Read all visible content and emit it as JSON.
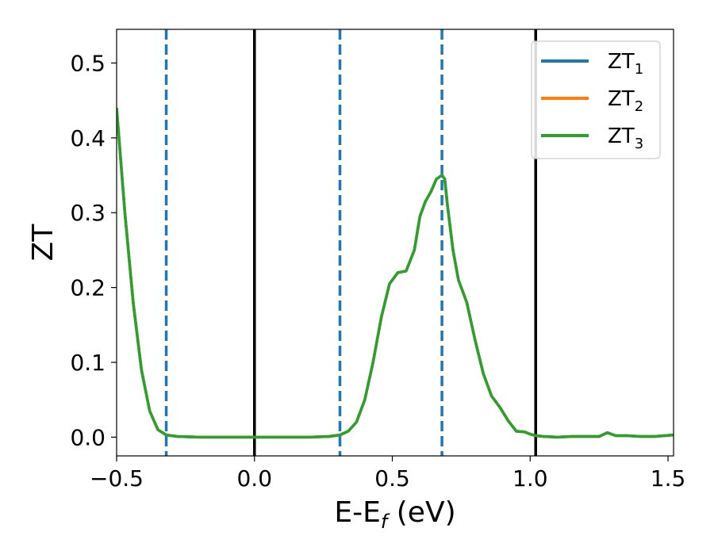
{
  "chart_data": {
    "type": "line",
    "title": "",
    "xlabel": "E-E",
    "xlabel_sub": "f",
    "xlabel_suffix": " (eV)",
    "ylabel": "ZT",
    "xlim": [
      -0.5,
      1.52
    ],
    "ylim": [
      -0.025,
      0.545
    ],
    "xticks": [
      -0.5,
      0.0,
      0.5,
      1.0,
      1.5
    ],
    "xtick_labels": [
      "−0.5",
      "0.0",
      "0.5",
      "1.0",
      "1.5"
    ],
    "yticks": [
      0.0,
      0.1,
      0.2,
      0.3,
      0.4,
      0.5
    ],
    "ytick_labels": [
      "0.0",
      "0.1",
      "0.2",
      "0.3",
      "0.4",
      "0.5"
    ],
    "grid": false,
    "legend_position": "top-right",
    "vlines_solid": [
      0.0,
      1.02
    ],
    "vlines_dashed": [
      -0.32,
      0.31,
      0.68
    ],
    "solid_line_color": "#000000",
    "dashed_line_color": "#1f77b4",
    "series": [
      {
        "name": "ZT",
        "name_sub": "1",
        "color": "#1f77b4",
        "x": [
          -0.5,
          -0.47,
          -0.44,
          -0.41,
          -0.38,
          -0.35,
          -0.32,
          -0.28,
          -0.2,
          -0.1,
          0.0,
          0.1,
          0.2,
          0.27,
          0.31,
          0.34,
          0.37,
          0.4,
          0.43,
          0.46,
          0.49,
          0.52,
          0.55,
          0.58,
          0.6,
          0.62,
          0.64,
          0.66,
          0.68,
          0.69,
          0.7,
          0.72,
          0.74,
          0.77,
          0.8,
          0.83,
          0.86,
          0.89,
          0.92,
          0.95,
          0.98,
          1.0,
          1.02,
          1.05,
          1.1,
          1.15,
          1.2,
          1.25,
          1.28,
          1.31,
          1.35,
          1.4,
          1.45,
          1.52
        ],
        "y": [
          0.44,
          0.3,
          0.18,
          0.09,
          0.035,
          0.01,
          0.003,
          0.001,
          0.0,
          0.0,
          0.0,
          0.0,
          0.0,
          0.001,
          0.003,
          0.008,
          0.02,
          0.05,
          0.1,
          0.16,
          0.205,
          0.22,
          0.222,
          0.25,
          0.295,
          0.315,
          0.328,
          0.345,
          0.35,
          0.345,
          0.31,
          0.25,
          0.21,
          0.18,
          0.13,
          0.085,
          0.055,
          0.04,
          0.022,
          0.008,
          0.007,
          0.004,
          0.002,
          0.001,
          0.0,
          0.001,
          0.001,
          0.001,
          0.006,
          0.002,
          0.002,
          0.001,
          0.001,
          0.003
        ]
      },
      {
        "name": "ZT",
        "name_sub": "2",
        "color": "#ff7f0e",
        "x": [
          -0.5,
          -0.47,
          -0.44,
          -0.41,
          -0.38,
          -0.35,
          -0.32,
          -0.28,
          -0.2,
          -0.1,
          0.0,
          0.1,
          0.2,
          0.27,
          0.31,
          0.34,
          0.37,
          0.4,
          0.43,
          0.46,
          0.49,
          0.52,
          0.55,
          0.58,
          0.6,
          0.62,
          0.64,
          0.66,
          0.68,
          0.69,
          0.7,
          0.72,
          0.74,
          0.77,
          0.8,
          0.83,
          0.86,
          0.89,
          0.92,
          0.95,
          0.98,
          1.0,
          1.02,
          1.05,
          1.1,
          1.15,
          1.2,
          1.25,
          1.28,
          1.31,
          1.35,
          1.4,
          1.45,
          1.52
        ],
        "y": [
          0.44,
          0.3,
          0.18,
          0.09,
          0.035,
          0.01,
          0.003,
          0.001,
          0.0,
          0.0,
          0.0,
          0.0,
          0.0,
          0.001,
          0.003,
          0.008,
          0.02,
          0.05,
          0.1,
          0.16,
          0.205,
          0.22,
          0.222,
          0.25,
          0.295,
          0.315,
          0.328,
          0.345,
          0.35,
          0.345,
          0.31,
          0.25,
          0.21,
          0.18,
          0.13,
          0.085,
          0.055,
          0.04,
          0.022,
          0.008,
          0.007,
          0.004,
          0.002,
          0.001,
          0.0,
          0.001,
          0.001,
          0.001,
          0.006,
          0.002,
          0.002,
          0.001,
          0.001,
          0.003
        ]
      },
      {
        "name": "ZT",
        "name_sub": "3",
        "color": "#2ca02c",
        "x": [
          -0.5,
          -0.47,
          -0.44,
          -0.41,
          -0.38,
          -0.35,
          -0.32,
          -0.28,
          -0.2,
          -0.1,
          0.0,
          0.1,
          0.2,
          0.27,
          0.31,
          0.34,
          0.37,
          0.4,
          0.43,
          0.46,
          0.49,
          0.52,
          0.55,
          0.58,
          0.6,
          0.62,
          0.64,
          0.66,
          0.68,
          0.69,
          0.7,
          0.72,
          0.74,
          0.77,
          0.8,
          0.83,
          0.86,
          0.89,
          0.92,
          0.95,
          0.98,
          1.0,
          1.02,
          1.05,
          1.1,
          1.15,
          1.2,
          1.25,
          1.28,
          1.31,
          1.35,
          1.4,
          1.45,
          1.52
        ],
        "y": [
          0.44,
          0.3,
          0.18,
          0.09,
          0.035,
          0.01,
          0.003,
          0.001,
          0.0,
          0.0,
          0.0,
          0.0,
          0.0,
          0.001,
          0.003,
          0.008,
          0.02,
          0.05,
          0.1,
          0.16,
          0.205,
          0.22,
          0.222,
          0.25,
          0.295,
          0.315,
          0.328,
          0.345,
          0.35,
          0.345,
          0.31,
          0.25,
          0.21,
          0.18,
          0.13,
          0.085,
          0.055,
          0.04,
          0.022,
          0.008,
          0.007,
          0.004,
          0.002,
          0.001,
          0.0,
          0.001,
          0.001,
          0.001,
          0.006,
          0.002,
          0.002,
          0.001,
          0.001,
          0.003
        ]
      }
    ]
  }
}
